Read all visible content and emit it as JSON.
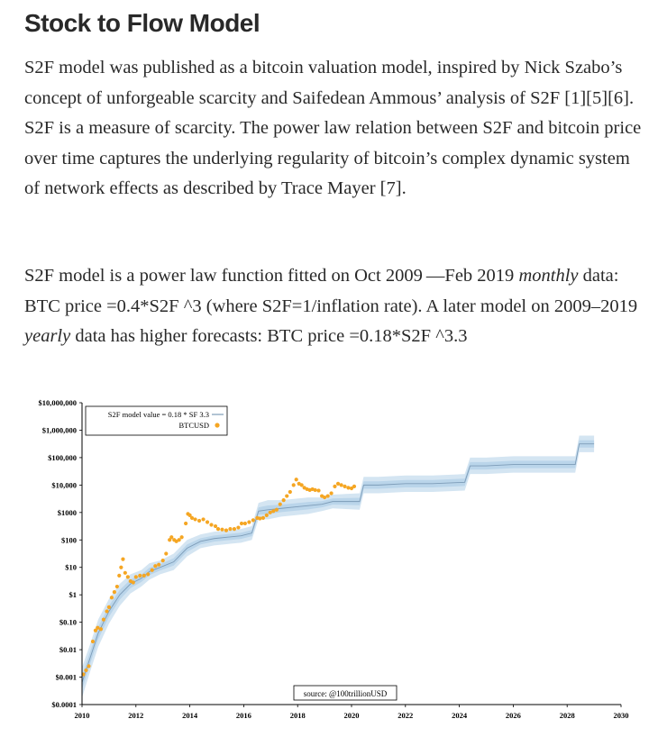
{
  "article": {
    "title": "Stock to Flow Model",
    "p1": "S2F model was published as a bitcoin valuation model, inspired by Nick Szabo’s concept of unforgeable scarcity and Saifedean Ammous’ analysis of S2F [1][5][6]. S2F is a measure of scarcity. The power law relation between S2F and bitcoin price over time captures the underlying regularity of bitcoin’s complex dynamic system of network effects as described by Trace Mayer [7].",
    "p2_a": "S2F model is a power law function fitted on Oct 2009 —Feb 2019 ",
    "p2_b": "monthly",
    "p2_c": " data: BTC price =0.4*S2F ^3 (where S2F=1/inflation rate). A later model on 2009–2019 ",
    "p2_d": "yearly",
    "p2_e": " data has higher forecasts: BTC price =0.18*S2F ^3.3"
  },
  "colors": {
    "text": "#292929",
    "band": "#c5dcee",
    "band_inner": "#a9cae4",
    "model_line": "#7d9cb8",
    "btc_dot": "#f5a623",
    "axis": "#000000"
  },
  "chart_data": {
    "type": "scatter",
    "title": "",
    "xlabel": "",
    "ylabel": "",
    "x_ticks": [
      "2010",
      "2012",
      "2014",
      "2016",
      "2018",
      "2020",
      "2022",
      "2024",
      "2026",
      "2028",
      "2030"
    ],
    "xlim": [
      2010,
      2030
    ],
    "y_ticks": [
      "$0.0001",
      "$0.001",
      "$0.01",
      "$0.10",
      "$1",
      "$10",
      "$100",
      "$1000",
      "$10,000",
      "$100,000",
      "$1,000,000",
      "$10,000,000"
    ],
    "ylim_log10": [
      -4,
      7
    ],
    "y_scale": "log",
    "legend": {
      "position": "top-left",
      "model_label": "S2F model value = 0.18 * SF 3.3",
      "btc_label": "BTCUSD"
    },
    "annotation": "source: @100trillionUSD",
    "model_band_log10": {
      "x": [
        2010.0,
        2010.3,
        2010.6,
        2011.0,
        2011.4,
        2011.8,
        2012.2,
        2012.5,
        2012.9,
        2013.4,
        2013.9,
        2014.4,
        2014.9,
        2015.4,
        2015.9,
        2016.3,
        2016.55,
        2016.9,
        2017.4,
        2017.9,
        2018.4,
        2018.9,
        2019.3,
        2020.3,
        2020.45,
        2021.0,
        2022.0,
        2023.0,
        2024.2,
        2024.4,
        2025.0,
        2026.0,
        2027.0,
        2028.0,
        2028.3,
        2028.45,
        2029.0
      ],
      "mid": [
        -3.2,
        -2.3,
        -1.4,
        -0.6,
        0.0,
        0.4,
        0.6,
        0.85,
        1.0,
        1.2,
        1.7,
        1.95,
        2.05,
        2.1,
        2.15,
        2.25,
        3.05,
        3.1,
        3.15,
        3.2,
        3.25,
        3.3,
        3.4,
        3.4,
        4.0,
        4.0,
        4.05,
        4.05,
        4.1,
        4.7,
        4.7,
        4.75,
        4.75,
        4.75,
        4.75,
        5.5,
        5.5
      ],
      "half": [
        0.55,
        0.5,
        0.5,
        0.45,
        0.4,
        0.35,
        0.3,
        0.3,
        0.25,
        0.3,
        0.3,
        0.25,
        0.25,
        0.25,
        0.25,
        0.25,
        0.3,
        0.35,
        0.3,
        0.3,
        0.3,
        0.25,
        0.25,
        0.3,
        0.3,
        0.3,
        0.3,
        0.3,
        0.3,
        0.3,
        0.3,
        0.3,
        0.3,
        0.3,
        0.3,
        0.3,
        0.3
      ]
    },
    "btc_points": [
      {
        "x": 2010.05,
        "y": -2.9
      },
      {
        "x": 2010.15,
        "y": -2.75
      },
      {
        "x": 2010.25,
        "y": -2.6
      },
      {
        "x": 2010.4,
        "y": -1.7
      },
      {
        "x": 2010.5,
        "y": -1.3
      },
      {
        "x": 2010.58,
        "y": -1.2
      },
      {
        "x": 2010.7,
        "y": -1.25
      },
      {
        "x": 2010.8,
        "y": -0.9
      },
      {
        "x": 2010.92,
        "y": -0.6
      },
      {
        "x": 2011.0,
        "y": -0.45
      },
      {
        "x": 2011.1,
        "y": -0.1
      },
      {
        "x": 2011.2,
        "y": 0.1
      },
      {
        "x": 2011.3,
        "y": 0.3
      },
      {
        "x": 2011.38,
        "y": 0.7
      },
      {
        "x": 2011.45,
        "y": 1.0
      },
      {
        "x": 2011.52,
        "y": 1.3
      },
      {
        "x": 2011.6,
        "y": 0.8
      },
      {
        "x": 2011.7,
        "y": 0.65
      },
      {
        "x": 2011.8,
        "y": 0.5
      },
      {
        "x": 2011.9,
        "y": 0.45
      },
      {
        "x": 2012.0,
        "y": 0.65
      },
      {
        "x": 2012.15,
        "y": 0.7
      },
      {
        "x": 2012.3,
        "y": 0.7
      },
      {
        "x": 2012.45,
        "y": 0.75
      },
      {
        "x": 2012.6,
        "y": 0.9
      },
      {
        "x": 2012.72,
        "y": 1.05
      },
      {
        "x": 2012.85,
        "y": 1.1
      },
      {
        "x": 2013.0,
        "y": 1.25
      },
      {
        "x": 2013.12,
        "y": 1.5
      },
      {
        "x": 2013.25,
        "y": 2.0
      },
      {
        "x": 2013.32,
        "y": 2.1
      },
      {
        "x": 2013.42,
        "y": 2.0
      },
      {
        "x": 2013.5,
        "y": 1.95
      },
      {
        "x": 2013.6,
        "y": 2.0
      },
      {
        "x": 2013.7,
        "y": 2.1
      },
      {
        "x": 2013.85,
        "y": 2.6
      },
      {
        "x": 2013.93,
        "y": 2.95
      },
      {
        "x": 2014.0,
        "y": 2.9
      },
      {
        "x": 2014.08,
        "y": 2.8
      },
      {
        "x": 2014.2,
        "y": 2.75
      },
      {
        "x": 2014.35,
        "y": 2.7
      },
      {
        "x": 2014.5,
        "y": 2.75
      },
      {
        "x": 2014.65,
        "y": 2.65
      },
      {
        "x": 2014.8,
        "y": 2.55
      },
      {
        "x": 2014.95,
        "y": 2.5
      },
      {
        "x": 2015.05,
        "y": 2.4
      },
      {
        "x": 2015.2,
        "y": 2.38
      },
      {
        "x": 2015.35,
        "y": 2.35
      },
      {
        "x": 2015.5,
        "y": 2.4
      },
      {
        "x": 2015.65,
        "y": 2.4
      },
      {
        "x": 2015.8,
        "y": 2.45
      },
      {
        "x": 2015.92,
        "y": 2.6
      },
      {
        "x": 2016.05,
        "y": 2.6
      },
      {
        "x": 2016.2,
        "y": 2.65
      },
      {
        "x": 2016.35,
        "y": 2.72
      },
      {
        "x": 2016.5,
        "y": 2.8
      },
      {
        "x": 2016.6,
        "y": 2.78
      },
      {
        "x": 2016.72,
        "y": 2.8
      },
      {
        "x": 2016.85,
        "y": 2.9
      },
      {
        "x": 2016.98,
        "y": 3.0
      },
      {
        "x": 2017.1,
        "y": 3.05
      },
      {
        "x": 2017.22,
        "y": 3.1
      },
      {
        "x": 2017.35,
        "y": 3.3
      },
      {
        "x": 2017.48,
        "y": 3.45
      },
      {
        "x": 2017.6,
        "y": 3.6
      },
      {
        "x": 2017.72,
        "y": 3.75
      },
      {
        "x": 2017.85,
        "y": 4.0
      },
      {
        "x": 2017.95,
        "y": 4.2
      },
      {
        "x": 2018.05,
        "y": 4.05
      },
      {
        "x": 2018.15,
        "y": 4.0
      },
      {
        "x": 2018.25,
        "y": 3.9
      },
      {
        "x": 2018.35,
        "y": 3.85
      },
      {
        "x": 2018.45,
        "y": 3.82
      },
      {
        "x": 2018.55,
        "y": 3.85
      },
      {
        "x": 2018.65,
        "y": 3.82
      },
      {
        "x": 2018.78,
        "y": 3.8
      },
      {
        "x": 2018.9,
        "y": 3.6
      },
      {
        "x": 2019.0,
        "y": 3.55
      },
      {
        "x": 2019.12,
        "y": 3.6
      },
      {
        "x": 2019.25,
        "y": 3.7
      },
      {
        "x": 2019.38,
        "y": 3.95
      },
      {
        "x": 2019.5,
        "y": 4.05
      },
      {
        "x": 2019.62,
        "y": 4.0
      },
      {
        "x": 2019.75,
        "y": 3.95
      },
      {
        "x": 2019.88,
        "y": 3.9
      },
      {
        "x": 2020.0,
        "y": 3.88
      },
      {
        "x": 2020.1,
        "y": 3.95
      }
    ]
  }
}
